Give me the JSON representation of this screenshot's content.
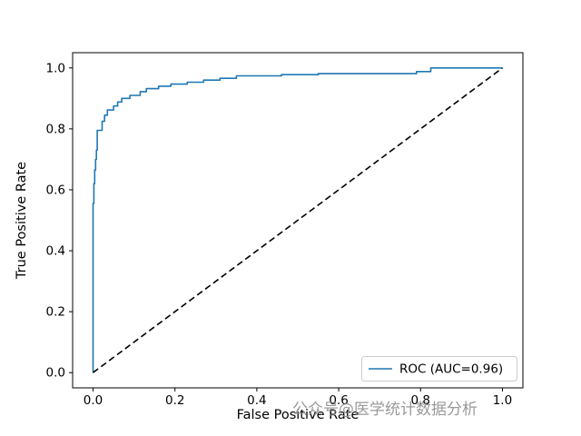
{
  "chart_data": {
    "type": "line",
    "title": "",
    "xlabel": "False Positive Rate",
    "ylabel": "True Positive Rate",
    "xlim": [
      -0.05,
      1.05
    ],
    "ylim": [
      -0.05,
      1.05
    ],
    "xticks": [
      0.0,
      0.2,
      0.4,
      0.6,
      0.8,
      1.0
    ],
    "yticks": [
      0.0,
      0.2,
      0.4,
      0.6,
      0.8,
      1.0
    ],
    "grid": false,
    "legend": {
      "position": "lower right",
      "entries": [
        {
          "label": "ROC (AUC=0.96)",
          "color": "#1f77b4",
          "style": "solid"
        }
      ]
    },
    "series": [
      {
        "name": "roc-curve",
        "color": "#1f77b4",
        "style": "solid",
        "points": [
          [
            0.0,
            0.0
          ],
          [
            0.0,
            0.555
          ],
          [
            0.002,
            0.555
          ],
          [
            0.002,
            0.62
          ],
          [
            0.004,
            0.62
          ],
          [
            0.004,
            0.665
          ],
          [
            0.006,
            0.665
          ],
          [
            0.006,
            0.7
          ],
          [
            0.008,
            0.7
          ],
          [
            0.008,
            0.73
          ],
          [
            0.01,
            0.73
          ],
          [
            0.01,
            0.795
          ],
          [
            0.022,
            0.795
          ],
          [
            0.022,
            0.825
          ],
          [
            0.028,
            0.825
          ],
          [
            0.028,
            0.845
          ],
          [
            0.035,
            0.845
          ],
          [
            0.035,
            0.862
          ],
          [
            0.05,
            0.862
          ],
          [
            0.05,
            0.875
          ],
          [
            0.06,
            0.875
          ],
          [
            0.06,
            0.888
          ],
          [
            0.07,
            0.888
          ],
          [
            0.07,
            0.9
          ],
          [
            0.09,
            0.9
          ],
          [
            0.09,
            0.91
          ],
          [
            0.115,
            0.91
          ],
          [
            0.115,
            0.922
          ],
          [
            0.13,
            0.922
          ],
          [
            0.13,
            0.932
          ],
          [
            0.16,
            0.932
          ],
          [
            0.16,
            0.94
          ],
          [
            0.19,
            0.94
          ],
          [
            0.19,
            0.947
          ],
          [
            0.23,
            0.947
          ],
          [
            0.23,
            0.953
          ],
          [
            0.27,
            0.953
          ],
          [
            0.27,
            0.96
          ],
          [
            0.31,
            0.96
          ],
          [
            0.31,
            0.966
          ],
          [
            0.35,
            0.966
          ],
          [
            0.35,
            0.974
          ],
          [
            0.46,
            0.974
          ],
          [
            0.46,
            0.978
          ],
          [
            0.55,
            0.978
          ],
          [
            0.55,
            0.981
          ],
          [
            0.79,
            0.981
          ],
          [
            0.79,
            0.988
          ],
          [
            0.825,
            0.988
          ],
          [
            0.825,
            1.0
          ],
          [
            1.0,
            1.0
          ]
        ]
      },
      {
        "name": "chance-diagonal",
        "color": "#000000",
        "style": "dashed",
        "points": [
          [
            0.0,
            0.0
          ],
          [
            1.0,
            1.0
          ]
        ]
      }
    ],
    "auc": 0.96,
    "watermark": "公众号@医学统计数据分析"
  }
}
